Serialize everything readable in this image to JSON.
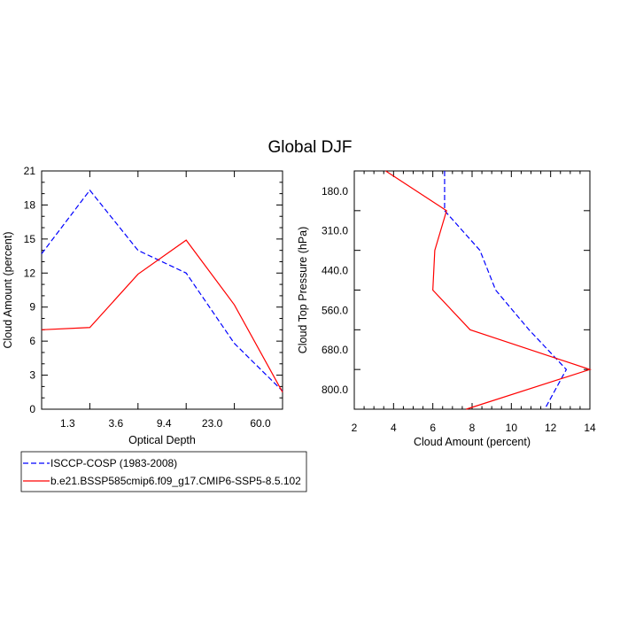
{
  "figure_title": "Global DJF",
  "chart_data": [
    {
      "type": "line",
      "xlabel": "Optical Depth",
      "ylabel": "Cloud Amount (percent)",
      "x_tick_labels": [
        "1.3",
        "3.6",
        "9.4",
        "23.0",
        "60.0"
      ],
      "ylim": [
        0,
        21
      ],
      "y_ticks": [
        0,
        3,
        6,
        9,
        12,
        15,
        18,
        21
      ],
      "series": [
        {
          "name": "ISCCP-COSP (1983-2008)",
          "color": "#0000ff",
          "dash": "dashed",
          "values": [
            13.7,
            19.3,
            14.0,
            12.0,
            5.8,
            1.6
          ]
        },
        {
          "name": "b.e21.BSSP585cmip6.f09_g17.CMIP6-SSP5-8.5.102",
          "color": "#ff0000",
          "dash": "solid",
          "values": [
            7.0,
            7.2,
            11.9,
            14.9,
            9.2,
            1.5
          ]
        }
      ]
    },
    {
      "type": "line",
      "xlabel": "Cloud Amount (percent)",
      "ylabel": "Cloud Top Pressure (hPa)",
      "x_ticks": [
        2,
        4,
        6,
        8,
        10,
        12,
        14
      ],
      "xlim": [
        2,
        14
      ],
      "y_tick_labels": [
        "180.0",
        "310.0",
        "440.0",
        "560.0",
        "680.0",
        "800.0"
      ],
      "series": [
        {
          "name": "ISCCP-COSP (1983-2008)",
          "color": "#0000ff",
          "dash": "dashed",
          "x": [
            6.6,
            6.6,
            8.4,
            9.2,
            10.9,
            12.8,
            11.7
          ]
        },
        {
          "name": "b.e21.BSSP585cmip6.f09_g17.CMIP6-SSP5-8.5.102",
          "color": "#ff0000",
          "dash": "solid",
          "x": [
            3.6,
            6.7,
            6.1,
            6.0,
            7.9,
            14.0,
            7.7
          ]
        }
      ]
    }
  ]
}
